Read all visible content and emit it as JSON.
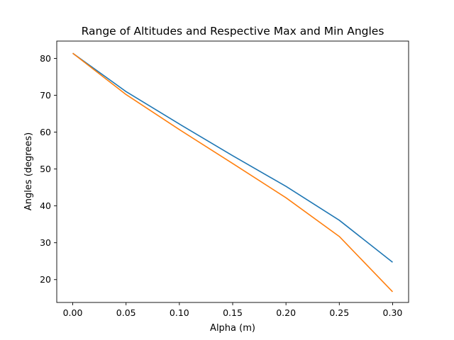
{
  "chart_data": {
    "type": "line",
    "title": "Range of Altitudes and Respective Max and Min Angles",
    "xlabel": "Alpha (m)",
    "ylabel": "Angles (degrees)",
    "x": [
      0.0,
      0.05,
      0.1,
      0.15,
      0.2,
      0.25,
      0.3
    ],
    "xlim": [
      -0.015,
      0.315
    ],
    "ylim": [
      13.8,
      84.7
    ],
    "xticks": [
      "0.00",
      "0.05",
      "0.10",
      "0.15",
      "0.20",
      "0.25",
      "0.30"
    ],
    "xtick_values": [
      0.0,
      0.05,
      0.1,
      0.15,
      0.2,
      0.25,
      0.3
    ],
    "yticks": [
      "20",
      "30",
      "40",
      "50",
      "60",
      "70",
      "80"
    ],
    "ytick_values": [
      20,
      30,
      40,
      50,
      60,
      70,
      80
    ],
    "grid": false,
    "legend": "none",
    "series": [
      {
        "color": "#1f77b4",
        "values": [
          81.4,
          71.0,
          62.2,
          53.6,
          45.3,
          36.1,
          24.7
        ]
      },
      {
        "color": "#ff7f0e",
        "values": [
          81.4,
          70.2,
          60.7,
          51.5,
          42.2,
          31.7,
          16.7
        ]
      }
    ]
  }
}
